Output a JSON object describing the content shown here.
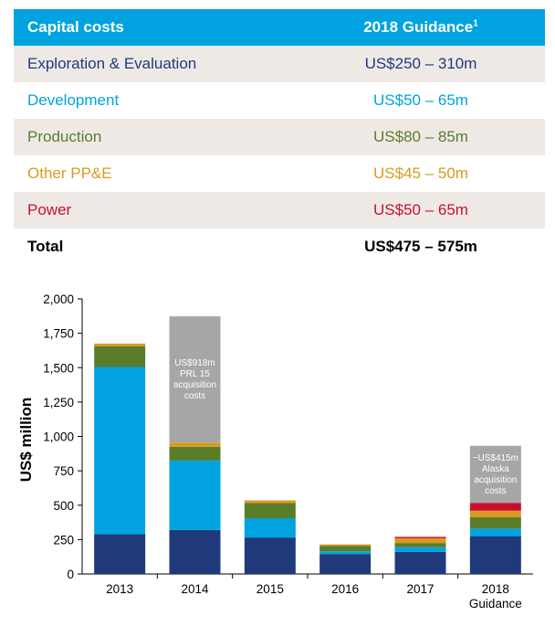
{
  "table": {
    "header": {
      "label": "Capital costs",
      "value": "2018 Guidance",
      "sup": "1"
    },
    "rows": [
      {
        "label": "Exploration & Evaluation",
        "value": "US$250 – 310m",
        "color": "#1f3a7a",
        "shaded": true
      },
      {
        "label": "Development",
        "value": "US$50 – 65m",
        "color": "#00a3e0",
        "shaded": false
      },
      {
        "label": "Production",
        "value": "US$80 – 85m",
        "color": "#5a7d2a",
        "shaded": true
      },
      {
        "label": "Other PP&E",
        "value": "US$45 – 50m",
        "color": "#d99a1f",
        "shaded": false
      },
      {
        "label": "Power",
        "value": "US$50 – 65m",
        "color": "#c8102e",
        "shaded": true
      }
    ],
    "total": {
      "label": "Total",
      "value": "US$475 – 575m"
    }
  },
  "chart_data": {
    "type": "bar",
    "stacked": true,
    "title": "",
    "ylabel": "US$ million",
    "ylim": [
      0,
      2000
    ],
    "yticks": [
      0,
      250,
      500,
      750,
      1000,
      1250,
      1500,
      1750,
      2000
    ],
    "ytick_labels": [
      "0",
      "250",
      "500",
      "750",
      "1,000",
      "1,250",
      "1,500",
      "1,750",
      "2,000"
    ],
    "categories": [
      [
        "2013"
      ],
      [
        "2014"
      ],
      [
        "2015"
      ],
      [
        "2016"
      ],
      [
        "2017"
      ],
      [
        "2018",
        "Guidance"
      ]
    ],
    "series": [
      {
        "color": "#1f3a7a",
        "values": [
          290,
          320,
          265,
          145,
          160,
          275
        ]
      },
      {
        "color": "#00a3e0",
        "values": [
          1215,
          505,
          140,
          20,
          35,
          55
        ]
      },
      {
        "color": "#5a7d2a",
        "values": [
          150,
          100,
          110,
          40,
          30,
          82
        ]
      },
      {
        "color": "#d99a1f",
        "values": [
          20,
          30,
          20,
          10,
          35,
          48
        ]
      },
      {
        "color": "#c8102e",
        "values": [
          0,
          0,
          0,
          0,
          10,
          57
        ]
      },
      {
        "color": "#a6a6a6",
        "values": [
          0,
          918,
          0,
          0,
          0,
          415
        ]
      }
    ],
    "annotations": [
      {
        "category_index": 1,
        "lines": [
          "US$918m",
          "PRL 15",
          "acquisition",
          "costs"
        ]
      },
      {
        "category_index": 5,
        "lines": [
          "~US$415m",
          "Alaska",
          "acquisition",
          "costs"
        ]
      }
    ]
  }
}
